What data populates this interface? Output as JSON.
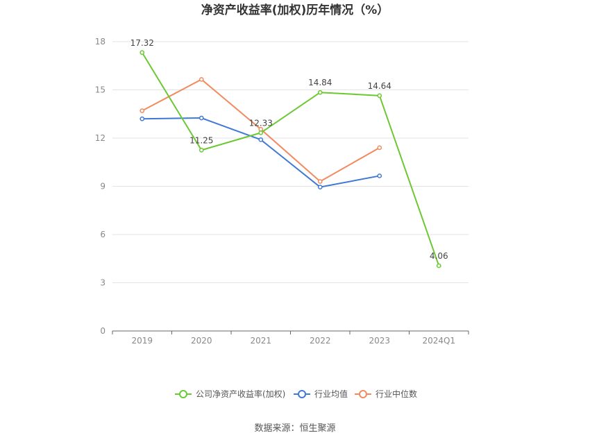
{
  "chart_data": {
    "type": "line",
    "title": "净资产收益率(加权)历年情况（%）",
    "categories": [
      "2019",
      "2020",
      "2021",
      "2022",
      "2023",
      "2024Q1"
    ],
    "ylim": [
      0,
      18
    ],
    "yticks": [
      0,
      3,
      6,
      9,
      12,
      15,
      18
    ],
    "grid": true,
    "legend_position": "bottom",
    "series": [
      {
        "name": "公司净资产收益率(加权)",
        "color": "#6cc832",
        "values": [
          17.32,
          11.25,
          12.33,
          14.84,
          14.64,
          4.06
        ],
        "labels": [
          "17.32",
          "11.25",
          "12.33",
          "14.84",
          "14.64",
          "4.06"
        ]
      },
      {
        "name": "行业均值",
        "color": "#3f78d5",
        "values": [
          13.2,
          13.25,
          11.9,
          8.95,
          9.65,
          null
        ]
      },
      {
        "name": "行业中位数",
        "color": "#f28a5f",
        "values": [
          13.7,
          15.65,
          12.55,
          9.3,
          11.4,
          null
        ]
      }
    ]
  },
  "footer": {
    "source": "数据来源：恒生聚源"
  }
}
